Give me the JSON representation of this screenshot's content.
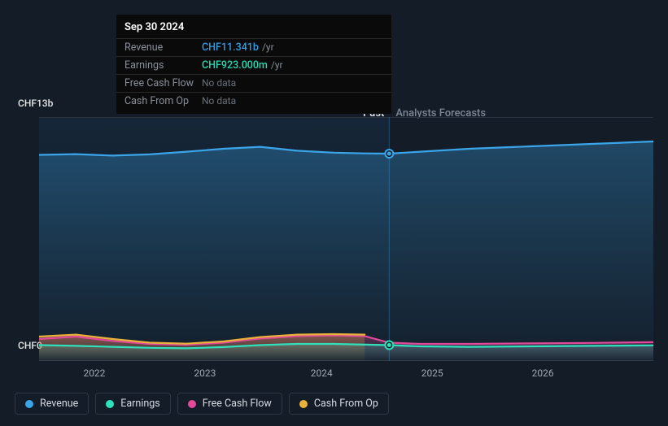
{
  "tooltip": {
    "date": "Sep 30 2024",
    "rows": [
      {
        "label": "Revenue",
        "value": "CHF11.341b",
        "suffix": "/yr",
        "color": "#2f9ce4"
      },
      {
        "label": "Earnings",
        "value": "CHF923.000m",
        "suffix": "/yr",
        "color": "#26d9b3"
      },
      {
        "label": "Free Cash Flow",
        "nodata": "No data"
      },
      {
        "label": "Cash From Op",
        "nodata": "No data"
      }
    ]
  },
  "chart": {
    "type": "line",
    "background_color": "#131c27",
    "grid_color": "#2a3340",
    "ylim": [
      0,
      13
    ],
    "y_axis_top_label": "CHF13b",
    "y_axis_bottom_label": "CHF0",
    "x_labels": [
      "2022",
      "2023",
      "2024",
      "2025",
      "2026"
    ],
    "x_label_positions_pct": [
      9,
      27,
      46,
      64,
      82
    ],
    "past_region_end_pct": 57,
    "past_label": "Past",
    "forecast_label": "Analysts Forecasts",
    "past_label_color": "#e6e8ec",
    "forecast_label_color": "#7d8692",
    "top_grid_line_pct": 0,
    "bottom_grid_line_pct": 100,
    "marker_radius": 4,
    "line_width": 2.2,
    "gradient_top_opacity": 0.32,
    "gradient_bottom_opacity": 0.02,
    "series": [
      {
        "name": "Revenue",
        "color": "#3ba5ea",
        "marker_x_pct": 57,
        "marker_y_pct": 15,
        "points": [
          {
            "x": 0,
            "y": 15.5
          },
          {
            "x": 6,
            "y": 15.2
          },
          {
            "x": 12,
            "y": 15.8
          },
          {
            "x": 18,
            "y": 15.3
          },
          {
            "x": 24,
            "y": 14.2
          },
          {
            "x": 30,
            "y": 13.0
          },
          {
            "x": 36,
            "y": 12.2
          },
          {
            "x": 42,
            "y": 13.8
          },
          {
            "x": 48,
            "y": 14.6
          },
          {
            "x": 53,
            "y": 14.9
          },
          {
            "x": 57,
            "y": 15.0
          },
          {
            "x": 62,
            "y": 14.2
          },
          {
            "x": 70,
            "y": 13.0
          },
          {
            "x": 80,
            "y": 12.0
          },
          {
            "x": 90,
            "y": 11.0
          },
          {
            "x": 100,
            "y": 10.0
          }
        ]
      },
      {
        "name": "Earnings",
        "color": "#2fe1bb",
        "marker_x_pct": 57,
        "marker_y_pct": 93.5,
        "points": [
          {
            "x": 0,
            "y": 93.5
          },
          {
            "x": 6,
            "y": 93.8
          },
          {
            "x": 12,
            "y": 94.2
          },
          {
            "x": 18,
            "y": 94.6
          },
          {
            "x": 24,
            "y": 94.8
          },
          {
            "x": 30,
            "y": 94.3
          },
          {
            "x": 36,
            "y": 93.5
          },
          {
            "x": 42,
            "y": 93.0
          },
          {
            "x": 48,
            "y": 93.0
          },
          {
            "x": 53,
            "y": 93.3
          },
          {
            "x": 57,
            "y": 93.5
          },
          {
            "x": 62,
            "y": 94.0
          },
          {
            "x": 70,
            "y": 94.2
          },
          {
            "x": 80,
            "y": 94.0
          },
          {
            "x": 90,
            "y": 93.8
          },
          {
            "x": 100,
            "y": 93.6
          }
        ]
      },
      {
        "name": "Free Cash Flow",
        "color": "#e14a9a",
        "ends_at_past": false,
        "points": [
          {
            "x": 0,
            "y": 91.0
          },
          {
            "x": 6,
            "y": 90.0
          },
          {
            "x": 12,
            "y": 91.8
          },
          {
            "x": 18,
            "y": 93.0
          },
          {
            "x": 24,
            "y": 93.4
          },
          {
            "x": 30,
            "y": 92.5
          },
          {
            "x": 36,
            "y": 90.8
          },
          {
            "x": 42,
            "y": 89.8
          },
          {
            "x": 48,
            "y": 89.5
          },
          {
            "x": 53,
            "y": 89.8
          },
          {
            "x": 57,
            "y": 92.5
          },
          {
            "x": 62,
            "y": 93.0
          },
          {
            "x": 70,
            "y": 93.0
          },
          {
            "x": 80,
            "y": 92.8
          },
          {
            "x": 90,
            "y": 92.6
          },
          {
            "x": 100,
            "y": 92.3
          }
        ]
      },
      {
        "name": "Cash From Op",
        "color": "#eab13a",
        "ends_at_past": true,
        "points": [
          {
            "x": 0,
            "y": 90.0
          },
          {
            "x": 6,
            "y": 89.2
          },
          {
            "x": 12,
            "y": 91.0
          },
          {
            "x": 18,
            "y": 92.5
          },
          {
            "x": 24,
            "y": 92.9
          },
          {
            "x": 30,
            "y": 92.0
          },
          {
            "x": 36,
            "y": 90.2
          },
          {
            "x": 42,
            "y": 89.2
          },
          {
            "x": 48,
            "y": 89.0
          },
          {
            "x": 53,
            "y": 89.2
          }
        ]
      }
    ]
  },
  "legend": [
    {
      "label": "Revenue",
      "color": "#3ba5ea"
    },
    {
      "label": "Earnings",
      "color": "#2fe1bb"
    },
    {
      "label": "Free Cash Flow",
      "color": "#e14a9a"
    },
    {
      "label": "Cash From Op",
      "color": "#eab13a"
    }
  ]
}
